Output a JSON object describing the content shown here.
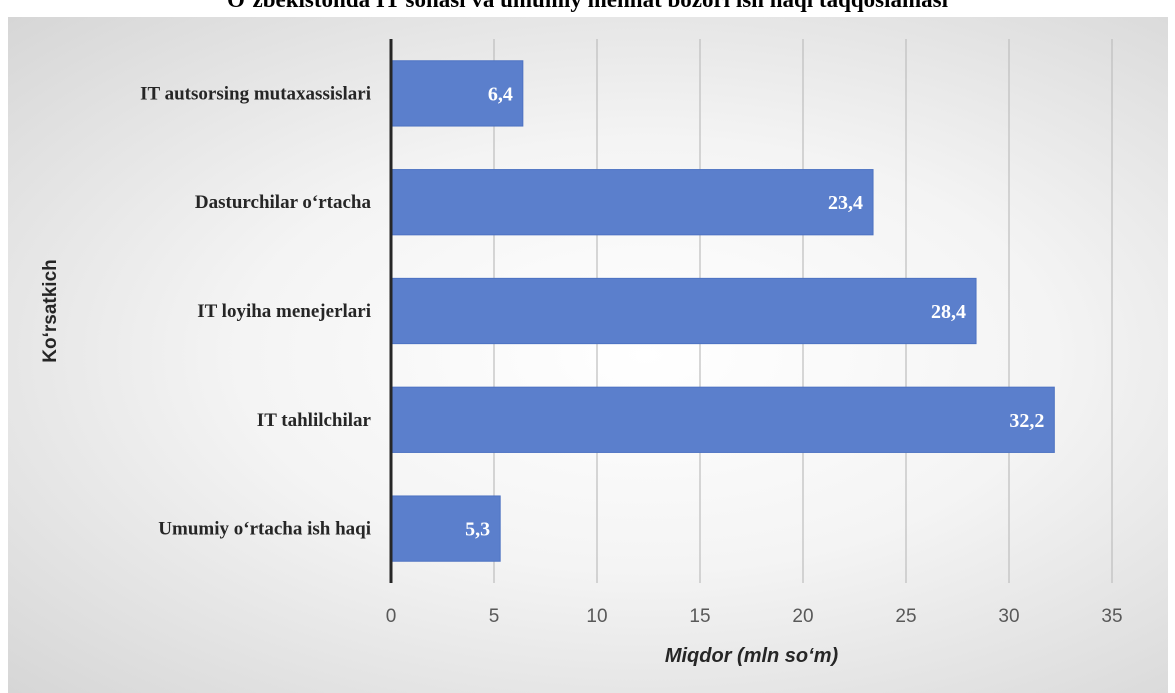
{
  "chart_data": {
    "type": "bar",
    "orientation": "horizontal",
    "title": "O‘zbekistonda IT sohasi va umumiy mehnat bozori ish haqi taqqoslamasi",
    "categories": [
      "IT autsorsing mutaxassislari",
      "Dasturchilar o‘rtacha",
      "IT loyiha menejerlari",
      "IT tahlilchilar",
      "Umumiy o‘rtacha ish haqi"
    ],
    "values": [
      6.4,
      23.4,
      28.4,
      32.2,
      5.3
    ],
    "value_labels": [
      "6,4",
      "23,4",
      "28,4",
      "32,2",
      "5,3"
    ],
    "xlabel": "Miqdor (mln so‘m)",
    "ylabel": "Ko‘rsatkich",
    "xlim": [
      0,
      35
    ],
    "x_ticks": [
      0,
      5,
      10,
      15,
      20,
      25,
      30,
      35
    ],
    "x_tick_labels": [
      "0",
      "5",
      "10",
      "15",
      "20",
      "25",
      "30",
      "35"
    ],
    "grid": "vertical",
    "legend": "none",
    "bar_color": "#5b7fcc",
    "bar_edge_color": "#4d72c2"
  }
}
